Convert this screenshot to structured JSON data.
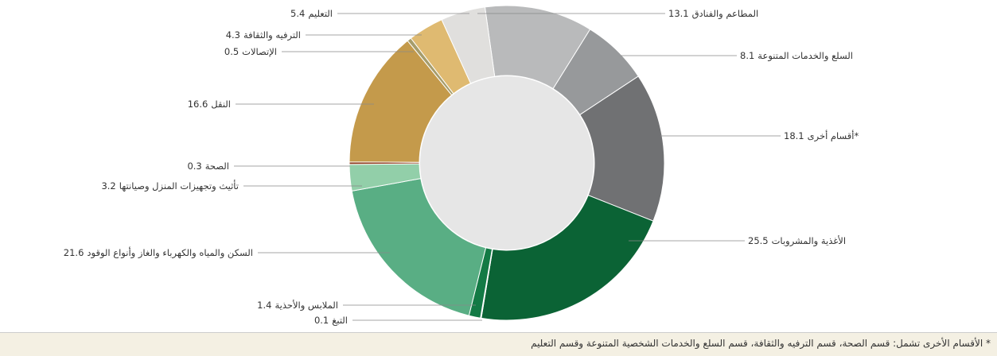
{
  "chart_data": {
    "type": "pie",
    "categories": [
      "المطاعم والفنادق",
      "السلع والخدمات المتنوعة",
      "*أقسام أخرى",
      "الأغذية والمشروبات",
      "التبغ",
      "الملابس والأحذية",
      "السكن والمياه والكهرباء والغاز وأنواع الوقود",
      "تأثيث وتجهيزات المنزل وصيانتها",
      "الصحة",
      "النقل",
      "الإتصالات",
      "الترفيه والثقافة",
      "التعليم"
    ],
    "values": [
      13.1,
      8.1,
      18.1,
      25.5,
      0.1,
      1.4,
      21.6,
      3.2,
      0.3,
      16.6,
      0.5,
      4.3,
      5.4
    ],
    "colors": [
      "#b9babb",
      "#97999b",
      "#707173",
      "#0b6335",
      "#0d7040",
      "#137a45",
      "#59ae84",
      "#92cfa9",
      "#8c3b1d",
      "#c49a4b",
      "#a69d6c",
      "#dfba71",
      "#e0dfdd"
    ],
    "donut": true,
    "footnote": "* الأقسام الأخرى تشمل: قسم الصحة، قسم الترفيه والثقافة، قسم السلع والخدمات الشخصية المتنوعة وقسم التعليم"
  }
}
